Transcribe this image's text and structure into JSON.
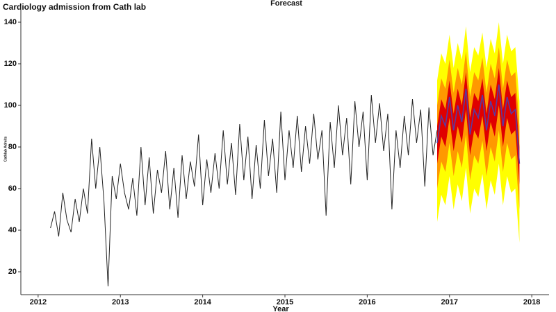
{
  "chart_data": {
    "type": "forecast-line",
    "title": "Forecast",
    "subtitle": "Cardiology admission from Cath lab",
    "x_label": "Year",
    "y_label": "Cathlab Admits",
    "xlim": [
      2011.79,
      2018.21
    ],
    "xticks": [
      2012,
      2013,
      2014,
      2015,
      2016,
      2017,
      2018
    ],
    "ylim": [
      9,
      148
    ],
    "yticks": [
      20,
      40,
      60,
      80,
      100,
      120,
      140
    ],
    "series": [
      {
        "color": "#222222",
        "x": [
          2012.15,
          2012.2,
          2012.25,
          2012.3,
          2012.35,
          2012.4,
          2012.45,
          2012.5,
          2012.55,
          2012.6,
          2012.65,
          2012.7,
          2012.75,
          2012.8,
          2012.85,
          2012.9,
          2012.95,
          2013,
          2013.05,
          2013.1,
          2013.15,
          2013.2,
          2013.25,
          2013.3,
          2013.35,
          2013.4,
          2013.45,
          2013.5,
          2013.55,
          2013.6,
          2013.65,
          2013.7,
          2013.75,
          2013.8,
          2013.85,
          2013.9,
          2013.95,
          2014,
          2014.05,
          2014.1,
          2014.15,
          2014.2,
          2014.25,
          2014.3,
          2014.35,
          2014.4,
          2014.45,
          2014.5,
          2014.55,
          2014.6,
          2014.65,
          2014.7,
          2014.75,
          2014.8,
          2014.85,
          2014.9,
          2014.95,
          2015,
          2015.05,
          2015.1,
          2015.15,
          2015.2,
          2015.25,
          2015.3,
          2015.35,
          2015.4,
          2015.45,
          2015.5,
          2015.55,
          2015.6,
          2015.65,
          2015.7,
          2015.75,
          2015.8,
          2015.85,
          2015.9,
          2015.95,
          2016,
          2016.05,
          2016.1,
          2016.15,
          2016.2,
          2016.25,
          2016.3,
          2016.35,
          2016.4,
          2016.45,
          2016.5,
          2016.55,
          2016.6,
          2016.65,
          2016.7,
          2016.75,
          2016.8,
          2016.85
        ],
        "values": [
          41,
          49,
          37,
          58,
          45,
          39,
          55,
          44,
          60,
          48,
          84,
          60,
          80,
          54,
          13,
          66,
          55,
          72,
          58,
          50,
          65,
          47,
          80,
          52,
          75,
          48,
          69,
          58,
          78,
          50,
          70,
          46,
          76,
          55,
          73,
          61,
          86,
          52,
          74,
          58,
          77,
          60,
          88,
          62,
          82,
          57,
          91,
          64,
          85,
          55,
          81,
          60,
          93,
          66,
          84,
          58,
          97,
          64,
          88,
          70,
          95,
          68,
          90,
          72,
          96,
          74,
          88,
          47,
          92,
          70,
          100,
          76,
          94,
          62,
          102,
          80,
          97,
          64,
          105,
          82,
          101,
          78,
          96,
          50,
          88,
          70,
          95,
          76,
          103,
          82,
          98,
          61,
          99,
          76,
          88
        ]
      }
    ],
    "forecast": {
      "x": [
        2016.85,
        2016.9,
        2016.95,
        2017,
        2017.05,
        2017.1,
        2017.15,
        2017.2,
        2017.25,
        2017.3,
        2017.35,
        2017.4,
        2017.45,
        2017.5,
        2017.55,
        2017.6,
        2017.65,
        2017.7,
        2017.75,
        2017.8,
        2017.85
      ],
      "mean": [
        82,
        95,
        90,
        104,
        88,
        100,
        92,
        108,
        86,
        98,
        94,
        105,
        88,
        102,
        95,
        110,
        90,
        104,
        96,
        98,
        72
      ],
      "color": "#5a3aa0",
      "bands": [
        {
          "color": "#ffff00",
          "upper": [
            112,
            125,
            120,
            134,
            118,
            130,
            122,
            138,
            116,
            128,
            124,
            135,
            118,
            132,
            125,
            140,
            120,
            134,
            126,
            128,
            102
          ],
          "lower": [
            44,
            57,
            52,
            66,
            50,
            62,
            54,
            70,
            48,
            60,
            56,
            67,
            50,
            64,
            57,
            72,
            52,
            66,
            58,
            60,
            34
          ]
        },
        {
          "color": "#ff9900",
          "upper": [
            100,
            113,
            108,
            122,
            106,
            118,
            110,
            126,
            104,
            116,
            112,
            123,
            106,
            120,
            113,
            128,
            108,
            122,
            114,
            116,
            90
          ],
          "lower": [
            60,
            73,
            68,
            82,
            66,
            78,
            70,
            86,
            64,
            76,
            72,
            83,
            66,
            80,
            73,
            88,
            68,
            82,
            74,
            76,
            50
          ]
        },
        {
          "color": "#e00000",
          "upper": [
            90,
            103,
            98,
            112,
            96,
            108,
            100,
            116,
            94,
            106,
            102,
            113,
            96,
            110,
            103,
            118,
            98,
            112,
            104,
            106,
            80
          ],
          "lower": [
            72,
            85,
            80,
            94,
            78,
            90,
            82,
            98,
            76,
            88,
            84,
            95,
            78,
            92,
            85,
            100,
            80,
            94,
            86,
            88,
            62
          ]
        }
      ]
    }
  }
}
